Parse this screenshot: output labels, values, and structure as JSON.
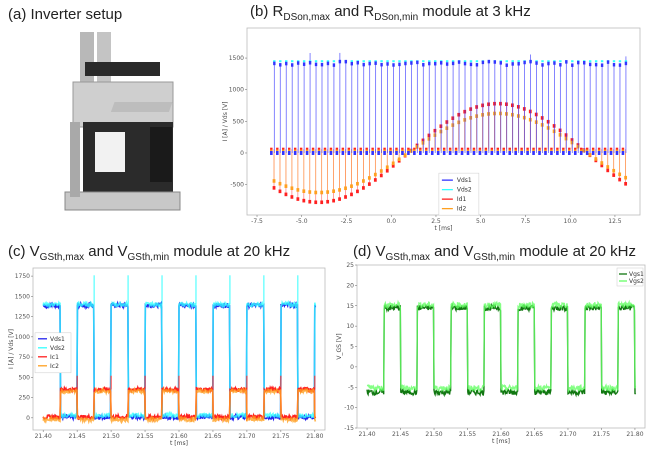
{
  "panels": {
    "a": {
      "title": "(a) Inverter setup"
    },
    "b": {
      "prefix": "(b) R",
      "sub1": "DSon,max",
      "mid": " and R",
      "sub2": "DSon,min",
      "suffix": " module at 3 kHz"
    },
    "c": {
      "prefix": "(c) V",
      "sub1": "GSth,max",
      "mid": " and V",
      "sub2": "GSth,min",
      "suffix": " module at 20 kHz"
    },
    "d": {
      "prefix": "(d) V",
      "sub1": "GSth,max",
      "mid": " and V",
      "sub2": "GSth,min",
      "suffix": " module at 20 kHz"
    }
  },
  "chart_data": [
    {
      "id": "b",
      "type": "line",
      "xlabel": "t [ms]",
      "ylabel": "I [A] / Vds [V]",
      "xlim": [
        -8.06,
        13.9
      ],
      "ylim": [
        -980,
        1975
      ],
      "xticks": [
        "-7.5",
        "-5.0",
        "-2.5",
        "0.0",
        "2.5",
        "5.0",
        "7.5",
        "10.0",
        "12.5"
      ],
      "xtick_values": [
        -7.5,
        -5,
        -2.5,
        0,
        2.5,
        5,
        7.5,
        10,
        12.5
      ],
      "yticks": [
        "-500",
        "0",
        "500",
        "1000",
        "1500"
      ],
      "ytick_values": [
        -500,
        0,
        500,
        1000,
        1500
      ],
      "t_start": -6.7,
      "t_end": 13.2,
      "switching_period_ms": 0.333,
      "series": [
        {
          "name": "Vds1",
          "color": "#3333ff",
          "high": 1420,
          "low": 0
        },
        {
          "name": "Vds2",
          "color": "#33ffff",
          "high": 1450,
          "low": 10
        },
        {
          "name": "Id1",
          "color": "#ff2020",
          "amplitude": 780,
          "period_ms": 20,
          "zero_ms": 0.8
        },
        {
          "name": "Id2",
          "color": "#ffa020",
          "amplitude": 625,
          "period_ms": 20,
          "zero_ms": 0.8
        }
      ],
      "legend": "bottom-center"
    },
    {
      "id": "c",
      "type": "line",
      "xlabel": "t [ms]",
      "ylabel": "I [A] / Vds [V]",
      "xlim": [
        21.385,
        21.815
      ],
      "ylim": [
        -150,
        1850
      ],
      "xticks": [
        "21.40",
        "21.45",
        "21.50",
        "21.55",
        "21.60",
        "21.65",
        "21.70",
        "21.75",
        "21.80"
      ],
      "xtick_values": [
        21.4,
        21.45,
        21.5,
        21.55,
        21.6,
        21.65,
        21.7,
        21.75,
        21.8
      ],
      "yticks": [
        "0",
        "250",
        "500",
        "750",
        "1000",
        "1250",
        "1500",
        "1750"
      ],
      "ytick_values": [
        0,
        250,
        500,
        750,
        1000,
        1250,
        1500,
        1750
      ],
      "period_ms": 0.05,
      "first_edge_ms": 21.425,
      "series": [
        {
          "name": "Vds1",
          "color": "#2222ee",
          "high": 1390,
          "low": 10
        },
        {
          "name": "Vds2",
          "color": "#33ffff",
          "high": 1400,
          "low": 30
        },
        {
          "name": "Ic1",
          "color": "#ff2020",
          "high": 350,
          "low": 10
        },
        {
          "name": "Ic2",
          "color": "#ffa020",
          "high": 330,
          "low": -20
        }
      ],
      "legend": "center-left"
    },
    {
      "id": "d",
      "type": "line",
      "xlabel": "t [ms]",
      "ylabel": "V_GS [V]",
      "xlim": [
        21.385,
        21.815
      ],
      "ylim": [
        -15,
        25
      ],
      "xticks": [
        "21.40",
        "21.45",
        "21.50",
        "21.55",
        "21.60",
        "21.65",
        "21.70",
        "21.75",
        "21.80"
      ],
      "xtick_values": [
        21.4,
        21.45,
        21.5,
        21.55,
        21.6,
        21.65,
        21.7,
        21.75,
        21.8
      ],
      "yticks": [
        "-15",
        "-10",
        "-5",
        "0",
        "5",
        "10",
        "15",
        "20",
        "25"
      ],
      "ytick_values": [
        -15,
        -10,
        -5,
        0,
        5,
        10,
        15,
        20,
        25
      ],
      "period_ms": 0.05,
      "first_edge_ms": 21.425,
      "series": [
        {
          "name": "Vgs1",
          "color": "#117711",
          "high": 14.5,
          "low": -6.2
        },
        {
          "name": "Vgs2",
          "color": "#66ff66",
          "high": 15.2,
          "low": -5.2
        }
      ],
      "legend": "top-right"
    }
  ]
}
